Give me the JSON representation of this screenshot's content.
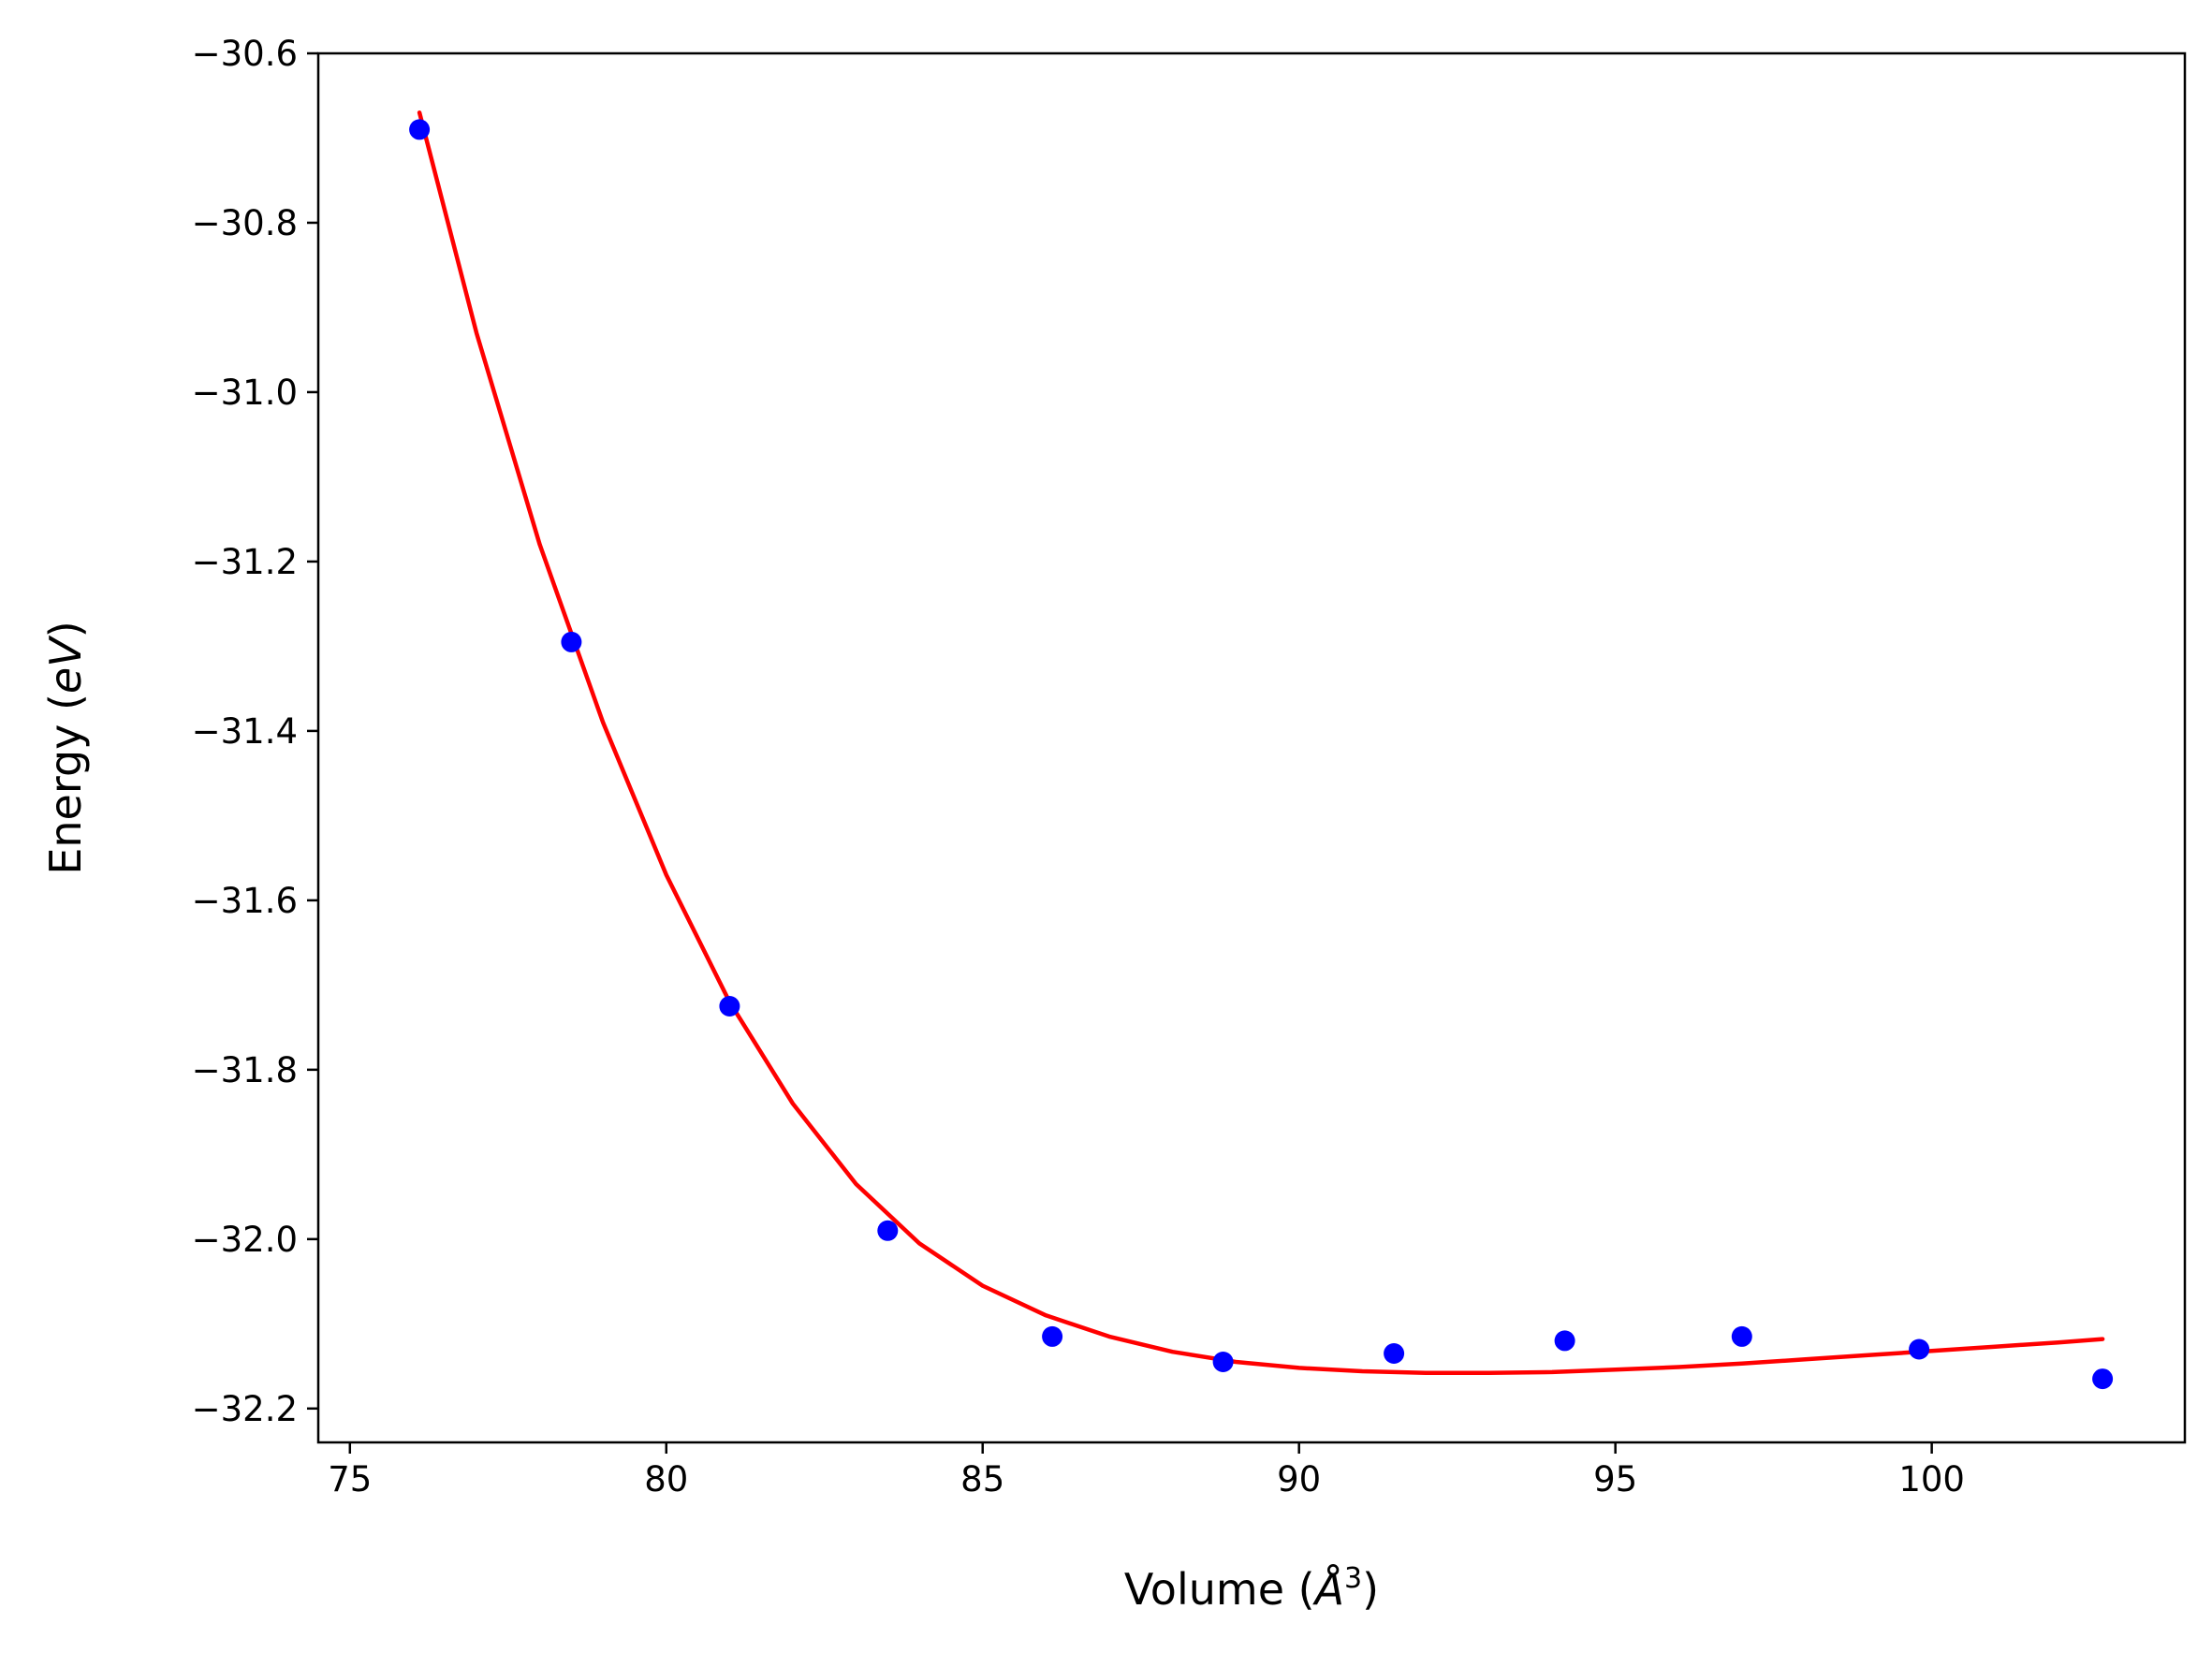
{
  "chart_data": {
    "type": "scatter",
    "title": "",
    "xlabel": "Volume (",
    "xlabel_unit": "Å",
    "xlabel_power": "3",
    "xlabel_close": ")",
    "ylabel": "Energy (",
    "ylabel_unit": "eV",
    "ylabel_close": ")",
    "xlim": [
      74.5,
      104.0
    ],
    "ylim": [
      -32.24,
      -30.6
    ],
    "x_ticks": [
      75,
      80,
      85,
      90,
      95,
      100
    ],
    "x_tick_labels": [
      "75",
      "80",
      "85",
      "90",
      "95",
      "100"
    ],
    "y_ticks": [
      -30.6,
      -30.8,
      -31.0,
      -31.2,
      -31.4,
      -31.6,
      -31.8,
      -32.0,
      -32.2
    ],
    "y_tick_labels": [
      "−30.6",
      "−30.8",
      "−31.0",
      "−31.2",
      "−31.4",
      "−31.6",
      "−31.8",
      "−32.0",
      "−32.2"
    ],
    "grid": false,
    "series": [
      {
        "type": "scatter",
        "color": "#0000ff",
        "x": [
          76.1,
          78.5,
          81.0,
          83.5,
          86.1,
          88.8,
          91.5,
          94.2,
          97.0,
          99.8,
          102.7
        ],
        "y": [
          -30.69,
          -31.295,
          -31.725,
          -31.99,
          -32.115,
          -32.145,
          -32.135,
          -32.12,
          -32.115,
          -32.13,
          -32.165
        ]
      },
      {
        "type": "line",
        "color": "#ff0000",
        "x": [
          76.1,
          77.0,
          78.0,
          79.0,
          80.0,
          81.0,
          82.0,
          83.0,
          84.0,
          85.0,
          86.0,
          87.0,
          88.0,
          89.0,
          90.0,
          91.0,
          92.0,
          93.0,
          94.0,
          95.0,
          96.0,
          97.0,
          98.0,
          99.0,
          100.0,
          101.0,
          102.0,
          102.7
        ],
        "y": [
          -30.67,
          -30.93,
          -31.18,
          -31.39,
          -31.57,
          -31.72,
          -31.84,
          -31.935,
          -32.005,
          -32.055,
          -32.09,
          -32.115,
          -32.133,
          -32.145,
          -32.152,
          -32.156,
          -32.158,
          -32.158,
          -32.157,
          -32.154,
          -32.151,
          -32.147,
          -32.142,
          -32.137,
          -32.132,
          -32.127,
          -32.122,
          -32.118
        ]
      }
    ]
  }
}
